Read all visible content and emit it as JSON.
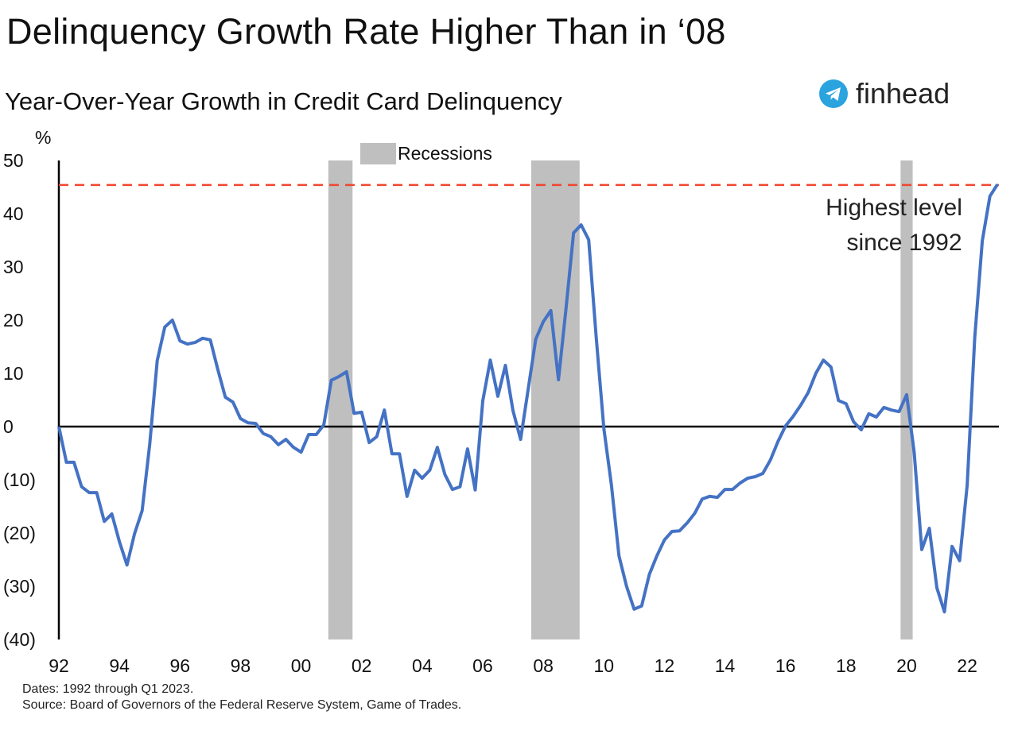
{
  "title": "Delinquency Growth Rate Higher Than in ‘08",
  "logo": {
    "text": "finhead",
    "icon": "telegram-icon",
    "color": "#2AA3DF"
  },
  "footnote": {
    "dates": "Dates: 1992 through Q1 2023.",
    "source": "Source: Board of Governors of the Federal Reserve System, Game of Trades."
  },
  "chart_data": {
    "type": "line",
    "title": "Year-Over-Year Growth in Credit Card Delinquency",
    "ylabel": "%",
    "xlabel": "",
    "ylim": [
      -40,
      50
    ],
    "xlim": [
      1992,
      2023
    ],
    "yticks": [
      50,
      40,
      30,
      20,
      10,
      0,
      -10,
      -20,
      -30,
      -40
    ],
    "ytick_labels": [
      "50",
      "40",
      "30",
      "20",
      "10",
      "0",
      "(10)",
      "(20)",
      "(30)",
      "(40)"
    ],
    "xticks": [
      1992,
      1994,
      1996,
      1998,
      2000,
      2002,
      2004,
      2006,
      2008,
      2010,
      2012,
      2014,
      2016,
      2018,
      2020,
      2022
    ],
    "xtick_labels": [
      "92",
      "94",
      "96",
      "98",
      "00",
      "02",
      "04",
      "06",
      "08",
      "10",
      "12",
      "14",
      "16",
      "18",
      "20",
      "22"
    ],
    "grid": false,
    "line_color": "#4472C4",
    "legend": {
      "label": "Recessions",
      "color": "#BFBFBF",
      "placement": "top-center"
    },
    "recessions": [
      [
        2000.9,
        2001.7
      ],
      [
        2007.6,
        2009.2
      ],
      [
        2019.8,
        2020.2
      ]
    ],
    "reference_line": {
      "value": 45.4,
      "color": "#F0462D",
      "style": "dashed"
    },
    "annotation": [
      "Highest level",
      "since 1992"
    ],
    "series": [
      {
        "x": [
          1992.0,
          1992.25,
          1992.5,
          1992.75,
          1993.0,
          1993.25,
          1993.5,
          1993.75,
          1994.0,
          1994.25,
          1994.5,
          1994.75,
          1995.0,
          1995.25,
          1995.5,
          1995.75,
          1996.0,
          1996.25,
          1996.5,
          1996.75,
          1997.0,
          1997.25,
          1997.5,
          1997.75,
          1998.0,
          1998.25,
          1998.5,
          1998.75,
          1999.0,
          1999.25,
          1999.5,
          1999.75,
          2000.0,
          2000.25,
          2000.5,
          2000.75,
          2001.0,
          2001.25,
          2001.5,
          2001.75,
          2002.0,
          2002.25,
          2002.5,
          2002.75,
          2003.0,
          2003.25,
          2003.5,
          2003.75,
          2004.0,
          2004.25,
          2004.5,
          2004.75,
          2005.0,
          2005.25,
          2005.5,
          2005.75,
          2006.0,
          2006.25,
          2006.5,
          2006.75,
          2007.0,
          2007.25,
          2007.5,
          2007.75,
          2008.0,
          2008.25,
          2008.5,
          2008.75,
          2009.0,
          2009.25,
          2009.5,
          2009.75,
          2010.0,
          2010.25,
          2010.5,
          2010.75,
          2011.0,
          2011.25,
          2011.5,
          2011.75,
          2012.0,
          2012.25,
          2012.5,
          2012.75,
          2013.0,
          2013.25,
          2013.5,
          2013.75,
          2014.0,
          2014.25,
          2014.5,
          2014.75,
          2015.0,
          2015.25,
          2015.5,
          2015.75,
          2016.0,
          2016.25,
          2016.5,
          2016.75,
          2017.0,
          2017.25,
          2017.5,
          2017.75,
          2018.0,
          2018.25,
          2018.5,
          2018.75,
          2019.0,
          2019.25,
          2019.5,
          2019.75,
          2020.0,
          2020.25,
          2020.5,
          2020.75,
          2021.0,
          2021.25,
          2021.5,
          2021.75,
          2022.0,
          2022.25,
          2022.5,
          2022.75,
          2023.0
        ],
        "values": [
          0,
          -6.7,
          -6.7,
          -11.3,
          -12.4,
          -12.4,
          -17.8,
          -16.4,
          -21.6,
          -26,
          -20.1,
          -15.8,
          -3.4,
          12.4,
          18.7,
          20,
          16.1,
          15.5,
          15.8,
          16.6,
          16.3,
          10.7,
          5.5,
          4.6,
          1.5,
          0.7,
          0.6,
          -1.3,
          -1.9,
          -3.4,
          -2.4,
          -3.9,
          -4.8,
          -1.5,
          -1.5,
          0.3,
          8.7,
          9.4,
          10.3,
          2.5,
          2.7,
          -3,
          -1.9,
          3.1,
          -5.1,
          -5.1,
          -13.1,
          -8.2,
          -9.7,
          -8.2,
          -3.9,
          -9,
          -11.8,
          -11.3,
          -4.2,
          -11.9,
          4.8,
          12.5,
          5.7,
          11.5,
          3,
          -2.4,
          7,
          16.4,
          19.7,
          21.8,
          8.8,
          22.2,
          36.4,
          37.9,
          35.1,
          16.7,
          -0.4,
          -11,
          -24.3,
          -30,
          -34.3,
          -33.7,
          -27.8,
          -24.3,
          -21.3,
          -19.7,
          -19.6,
          -18.1,
          -16.3,
          -13.6,
          -13.1,
          -13.3,
          -11.8,
          -11.8,
          -10.6,
          -9.7,
          -9.4,
          -8.8,
          -6.3,
          -2.8,
          0.1,
          1.9,
          4,
          6.4,
          10,
          12.5,
          11.2,
          4.9,
          4.3,
          0.9,
          -0.6,
          2.4,
          1.8,
          3.6,
          3.1,
          2.8,
          6,
          -4.9,
          -23.1,
          -19.1,
          -30.3,
          -34.8,
          -22.5,
          -25.2,
          -11,
          16.7,
          34.9,
          43.3,
          45.5
        ]
      }
    ]
  }
}
